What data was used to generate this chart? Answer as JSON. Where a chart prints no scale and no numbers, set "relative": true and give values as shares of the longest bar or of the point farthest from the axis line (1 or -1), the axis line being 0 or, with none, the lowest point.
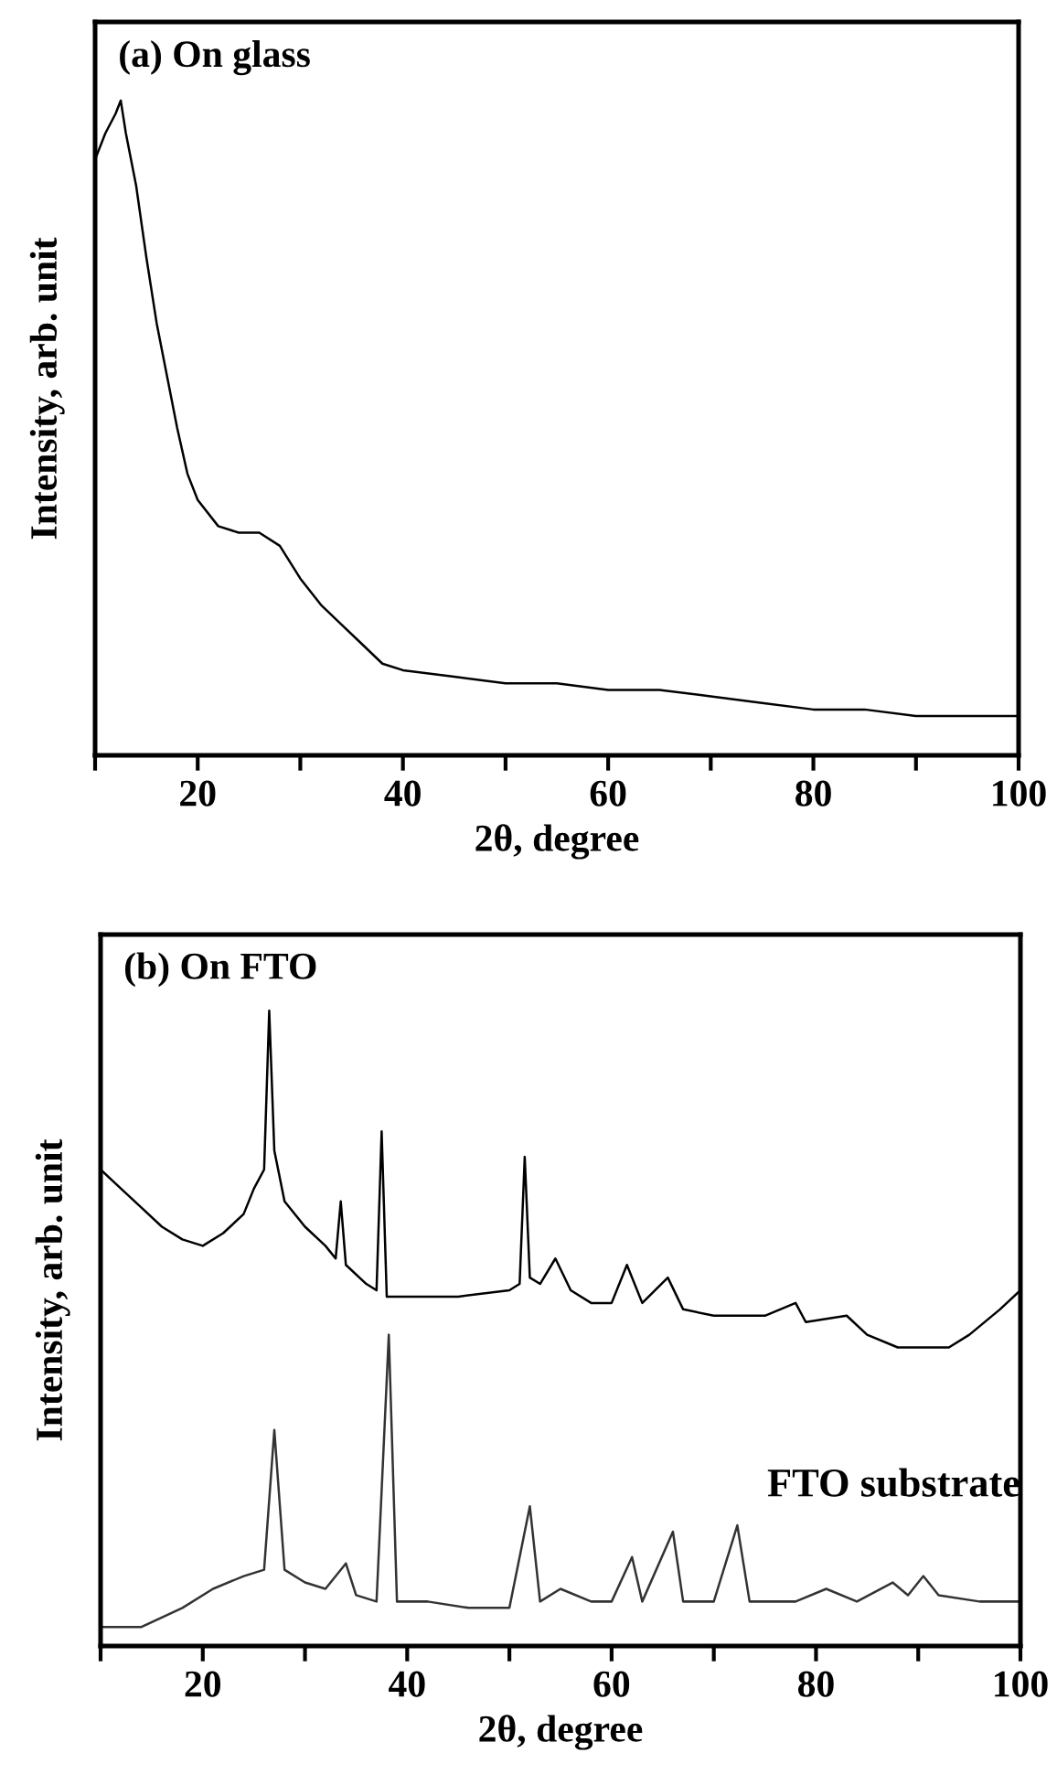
{
  "chart_data": [
    {
      "type": "line",
      "title": "(a) On glass",
      "xlabel": "2θ, degree",
      "ylabel": "Intensity, arb. unit",
      "relative": true,
      "xlim": [
        10,
        100
      ],
      "xticks": [
        {
          "value": 10,
          "label": null
        },
        20,
        {
          "value": 30,
          "label": null
        },
        40,
        {
          "value": 50,
          "label": null
        },
        60,
        {
          "value": 70,
          "label": null
        },
        80,
        {
          "value": 90,
          "label": null
        },
        100
      ],
      "grid": false,
      "legend": false,
      "marker": "none",
      "line_style": "solid",
      "series": [
        {
          "color": "#000000",
          "x": [
            10,
            11,
            12,
            12.5,
            13,
            14,
            15,
            16,
            17,
            18,
            19,
            20,
            22,
            24,
            26,
            28,
            30,
            32,
            34,
            36,
            38,
            40,
            45,
            50,
            55,
            60,
            65,
            70,
            75,
            80,
            85,
            90,
            95,
            100
          ],
          "values": [
            0.91,
            0.95,
            0.98,
            1.0,
            0.95,
            0.87,
            0.76,
            0.66,
            0.58,
            0.5,
            0.43,
            0.39,
            0.35,
            0.34,
            0.34,
            0.32,
            0.27,
            0.23,
            0.2,
            0.17,
            0.14,
            0.13,
            0.12,
            0.11,
            0.11,
            0.1,
            0.1,
            0.09,
            0.08,
            0.07,
            0.07,
            0.06,
            0.06,
            0.06
          ]
        }
      ]
    },
    {
      "type": "line",
      "title": "(b) On FTO",
      "xlabel": "2θ, degree",
      "ylabel": "Intensity, arb. unit",
      "relative": true,
      "xlim": [
        10,
        100
      ],
      "xticks": [
        {
          "value": 10,
          "label": null
        },
        20,
        {
          "value": 30,
          "label": null
        },
        40,
        {
          "value": 50,
          "label": null
        },
        60,
        {
          "value": 70,
          "label": null
        },
        80,
        {
          "value": 90,
          "label": null
        },
        100
      ],
      "grid": false,
      "legend": false,
      "marker": "none",
      "line_style": "solid",
      "series": [
        {
          "color": "#000000",
          "x": [
            10,
            12,
            14,
            16,
            18,
            20,
            22,
            24,
            25,
            26,
            26.5,
            27,
            28,
            30,
            32,
            33,
            33.5,
            34,
            36,
            37,
            37.5,
            38,
            40,
            45,
            50,
            51,
            51.5,
            52,
            53,
            54.5,
            56,
            58,
            60,
            61.5,
            63,
            65.5,
            67,
            70,
            75,
            78,
            79,
            83,
            85,
            88,
            90,
            93,
            95,
            98,
            100
          ],
          "values": [
            0.75,
            0.72,
            0.69,
            0.66,
            0.64,
            0.63,
            0.65,
            0.68,
            0.72,
            0.75,
            1.0,
            0.78,
            0.7,
            0.66,
            0.63,
            0.61,
            0.7,
            0.6,
            0.57,
            0.56,
            0.81,
            0.55,
            0.55,
            0.55,
            0.56,
            0.57,
            0.77,
            0.58,
            0.57,
            0.61,
            0.56,
            0.54,
            0.54,
            0.6,
            0.54,
            0.58,
            0.53,
            0.52,
            0.52,
            0.54,
            0.51,
            0.52,
            0.49,
            0.47,
            0.47,
            0.47,
            0.49,
            0.53,
            0.56
          ]
        },
        {
          "name": "FTO substrate",
          "color": "#333333",
          "x": [
            10,
            14,
            18,
            21,
            24,
            26,
            27,
            28,
            30,
            32,
            34,
            35,
            37,
            38.2,
            39,
            42,
            46,
            50,
            52,
            53,
            55,
            58,
            60,
            62,
            63,
            66,
            67,
            70,
            72.3,
            73.5,
            78,
            81,
            84,
            87.5,
            89,
            90.5,
            92,
            96,
            100
          ],
          "values": [
            0.03,
            0.03,
            0.06,
            0.09,
            0.11,
            0.12,
            0.34,
            0.12,
            0.1,
            0.09,
            0.13,
            0.08,
            0.07,
            0.49,
            0.07,
            0.07,
            0.06,
            0.06,
            0.22,
            0.07,
            0.09,
            0.07,
            0.07,
            0.14,
            0.07,
            0.18,
            0.07,
            0.07,
            0.19,
            0.07,
            0.07,
            0.09,
            0.07,
            0.1,
            0.08,
            0.11,
            0.08,
            0.07,
            0.07
          ]
        }
      ]
    }
  ]
}
